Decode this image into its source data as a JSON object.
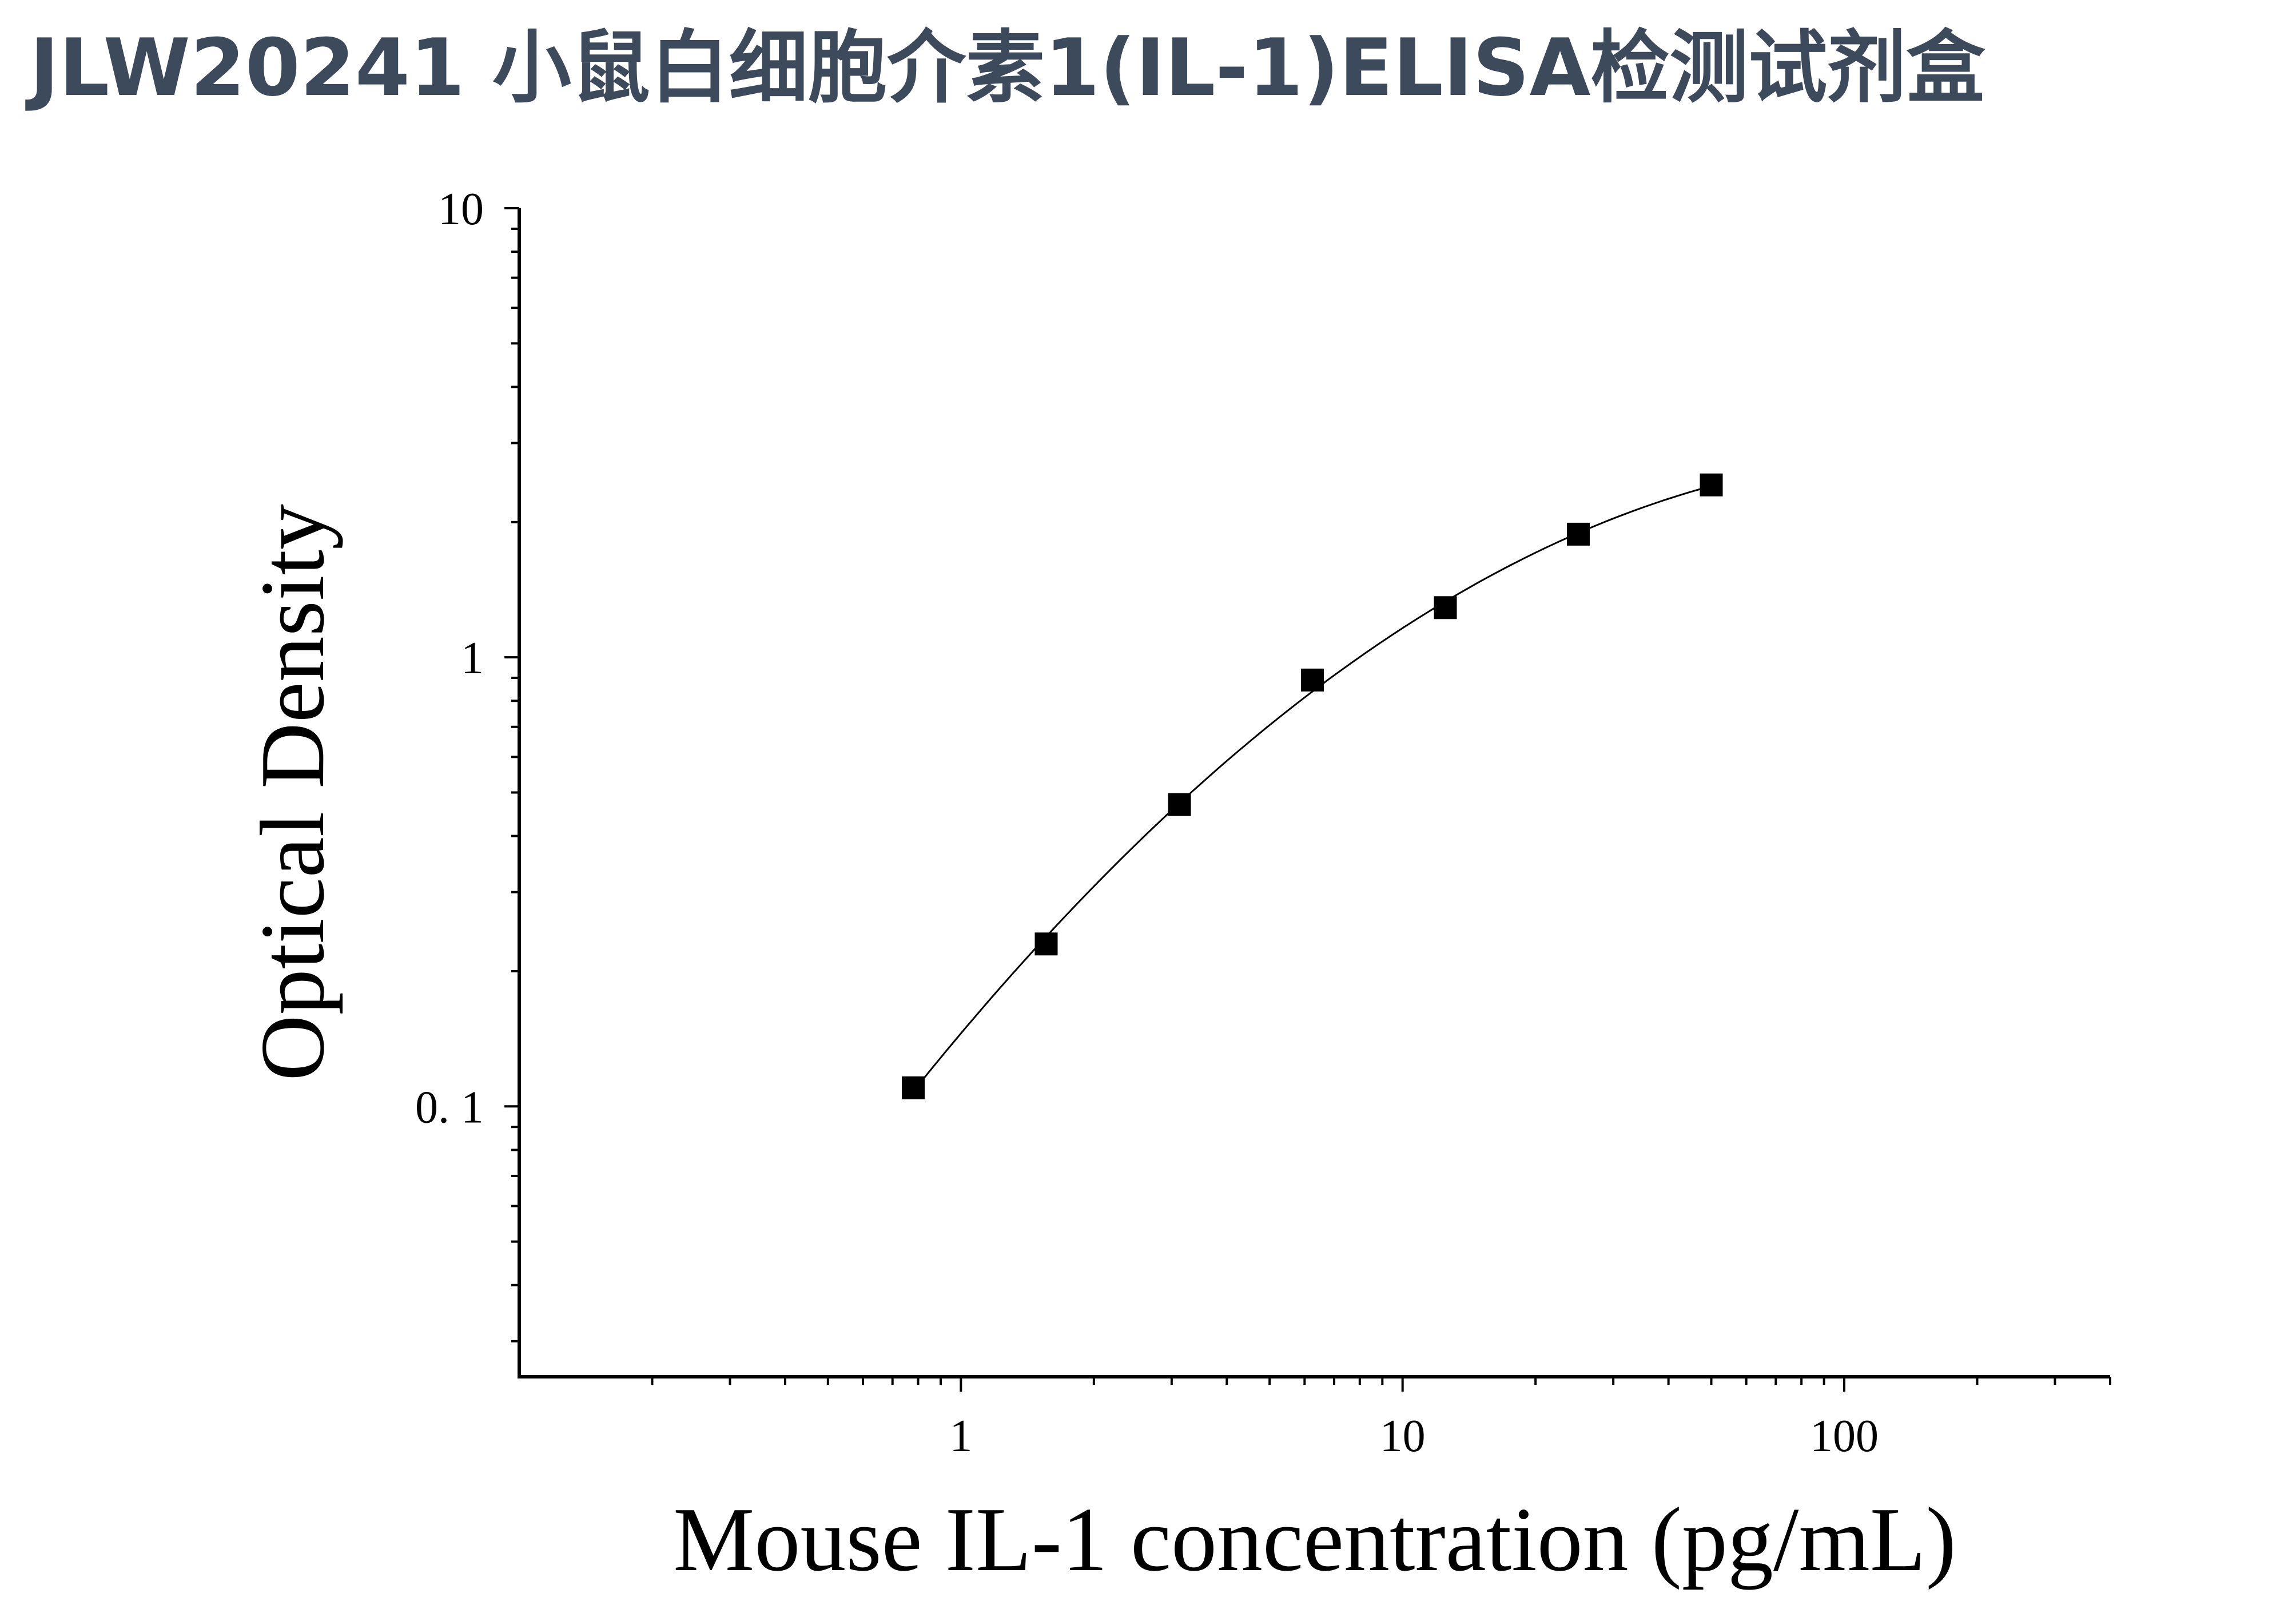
{
  "title": "JLW20241 小鼠白细胞介素1(IL-1)ELISA检测试剂盒",
  "chart_data": {
    "type": "scatter",
    "title": "JLW20241 小鼠白细胞介素1(IL-1)ELISA检测试剂盒",
    "xlabel": "Mouse IL-1 concentration (pg/mL)",
    "ylabel": "Optical Density",
    "x_scale": "log",
    "y_scale": "log",
    "xlim": [
      0.1,
      400
    ],
    "ylim": [
      0.025,
      10
    ],
    "x_ticks": [
      {
        "value": 1,
        "label": "1"
      },
      {
        "value": 10,
        "label": "10"
      },
      {
        "value": 100,
        "label": "100"
      }
    ],
    "y_ticks": [
      {
        "value": 0.1,
        "label": "0. 1"
      },
      {
        "value": 1,
        "label": "1"
      },
      {
        "value": 10,
        "label": "10"
      }
    ],
    "grid": false,
    "marker": "square",
    "marker_color": "#000000",
    "line_color": "#000000",
    "points": [
      {
        "x": 0.78,
        "y": 0.11
      },
      {
        "x": 1.56,
        "y": 0.23
      },
      {
        "x": 3.125,
        "y": 0.47
      },
      {
        "x": 6.25,
        "y": 0.89
      },
      {
        "x": 12.5,
        "y": 1.29
      },
      {
        "x": 25,
        "y": 1.88
      },
      {
        "x": 50,
        "y": 2.42
      }
    ]
  }
}
